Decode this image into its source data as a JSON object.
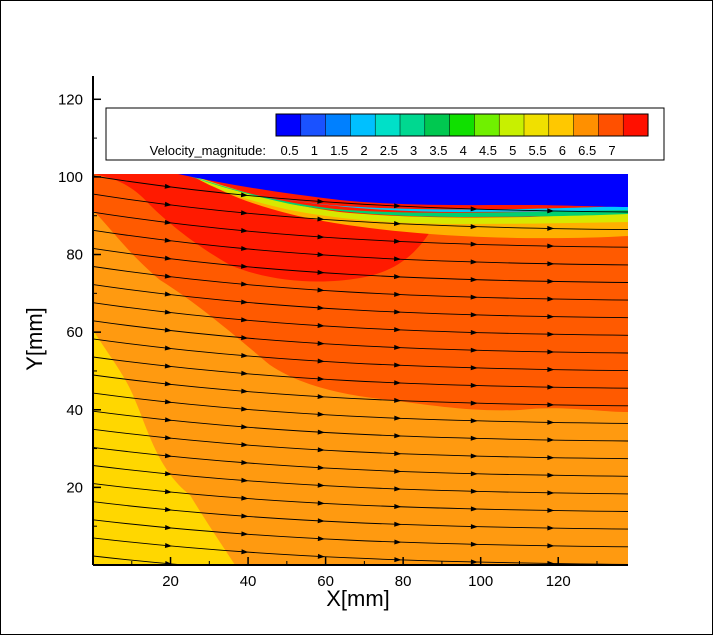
{
  "chart_data": {
    "type": "heatmap",
    "subtype": "contour-with-streamlines",
    "xlabel": "X[mm]",
    "ylabel": "Y[mm]",
    "xlim": [
      0,
      138
    ],
    "ylim": [
      0,
      126
    ],
    "xticks": [
      20,
      40,
      60,
      80,
      100,
      120
    ],
    "yticks": [
      20,
      40,
      60,
      80,
      100,
      120
    ],
    "plot_window_y": [
      1,
      101
    ],
    "colorbar": {
      "label": "Velocity_magnitude:",
      "levels": [
        0.5,
        1,
        1.5,
        2,
        2.5,
        3,
        3.5,
        4,
        4.5,
        5,
        5.5,
        6,
        6.5,
        7
      ],
      "tick_labels": [
        "0.5",
        "1",
        "1.5",
        "2",
        "2.5",
        "3",
        "3.5",
        "4",
        "4.5",
        "5",
        "5.5",
        "6",
        "6.5",
        "7"
      ],
      "colors": [
        "#0000ff",
        "#1a52ff",
        "#0080ff",
        "#00c0ff",
        "#00e0c8",
        "#00d890",
        "#00c850",
        "#10e000",
        "#70f000",
        "#c8f000",
        "#f0e000",
        "#ffc800",
        "#ff9000",
        "#ff5000",
        "#ff1000"
      ]
    },
    "regions": [
      {
        "name": "low",
        "value": 0.5,
        "color": "#0000ff"
      },
      {
        "name": "band-5.5",
        "value": 5.5,
        "color": "#ffd700"
      },
      {
        "name": "band-6",
        "value": 6,
        "color": "#ff9a10"
      },
      {
        "name": "band-6.5",
        "value": 6.5,
        "color": "#ff5a00"
      },
      {
        "name": "band-7",
        "value": 7,
        "color": "#ff1a00"
      }
    ],
    "streamlines_count": 22
  }
}
